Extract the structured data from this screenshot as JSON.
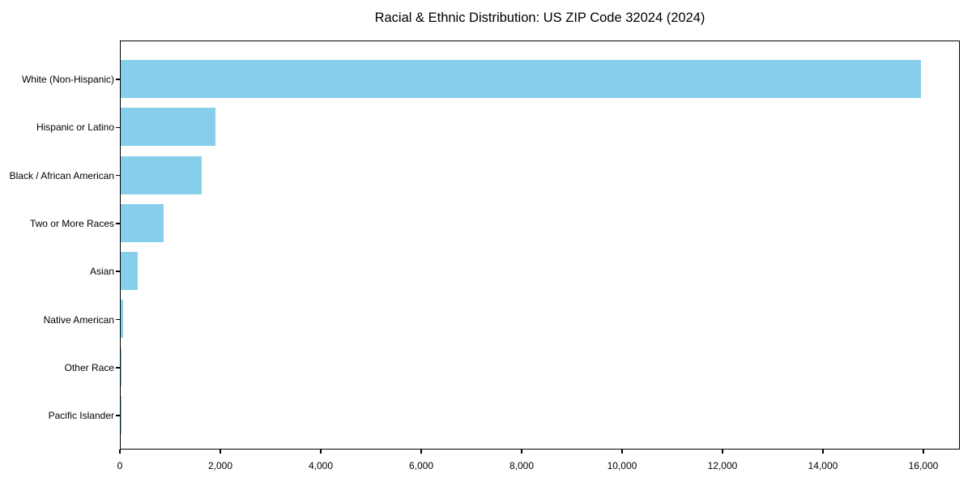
{
  "chart_data": {
    "type": "bar",
    "orientation": "horizontal",
    "title": "Racial & Ethnic Distribution: US ZIP Code 32024 (2024)",
    "categories": [
      "White (Non-Hispanic)",
      "Hispanic or Latino",
      "Black / African American",
      "Two or More Races",
      "Asian",
      "Native American",
      "Other Race",
      "Pacific Islander"
    ],
    "values": [
      15930,
      1890,
      1610,
      855,
      340,
      48,
      15,
      5
    ],
    "xlabel": "",
    "ylabel": "",
    "xlim": [
      0,
      16726
    ],
    "x_ticks": [
      0,
      2000,
      4000,
      6000,
      8000,
      10000,
      12000,
      14000,
      16000
    ],
    "x_tick_labels": [
      "0",
      "2,000",
      "4,000",
      "6,000",
      "8,000",
      "10,000",
      "12,000",
      "14,000",
      "16,000"
    ],
    "grid": false,
    "legend": "none",
    "bar_color": "#87CEEB",
    "background_color": "#FFFFFF",
    "spine_color": "#000000"
  }
}
